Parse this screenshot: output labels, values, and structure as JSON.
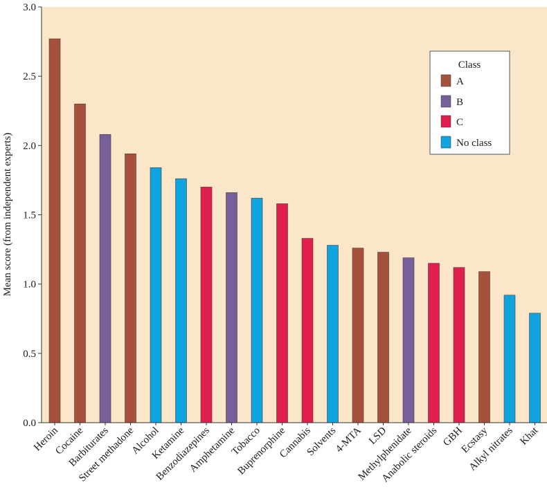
{
  "chart_data": {
    "type": "bar",
    "title": "",
    "xlabel": "",
    "ylabel": "Mean score (from independent experts)",
    "ylim": [
      0,
      3.0
    ],
    "yticks": [
      "0.0",
      "0.5",
      "1.0",
      "1.5",
      "2.0",
      "2.5",
      "3.0"
    ],
    "grid": false,
    "legend_position": "top-right",
    "background_color": "#fce6c9",
    "categories": [
      "Heroin",
      "Cocaine",
      "Barbiturates",
      "Street methadone",
      "Alcohol",
      "Ketamine",
      "Benzodiazepines",
      "Amphetamine",
      "Tobacco",
      "Buprenorphine",
      "Cannabis",
      "Solvents",
      "4-MTA",
      "LSD",
      "Methylphenidate",
      "Anabolic steroids",
      "GBH",
      "Ecstasy",
      "Alkyl nitrates",
      "Khat"
    ],
    "values": [
      2.77,
      2.3,
      2.08,
      1.94,
      1.84,
      1.76,
      1.7,
      1.66,
      1.62,
      1.58,
      1.33,
      1.28,
      1.26,
      1.23,
      1.19,
      1.15,
      1.12,
      1.09,
      0.92,
      0.79
    ],
    "classes": [
      "A",
      "A",
      "B",
      "A",
      "No class",
      "No class",
      "C",
      "B",
      "No class",
      "C",
      "C",
      "No class",
      "A",
      "A",
      "B",
      "C",
      "C",
      "A",
      "No class",
      "No class"
    ],
    "legend": {
      "title": "Class",
      "items": [
        {
          "key": "A",
          "label": "A",
          "color": "#a5513b"
        },
        {
          "key": "B",
          "label": "B",
          "color": "#76609a"
        },
        {
          "key": "C",
          "label": "C",
          "color": "#e01f4f"
        },
        {
          "key": "No class",
          "label": "No class",
          "color": "#0fa4df"
        }
      ]
    }
  }
}
